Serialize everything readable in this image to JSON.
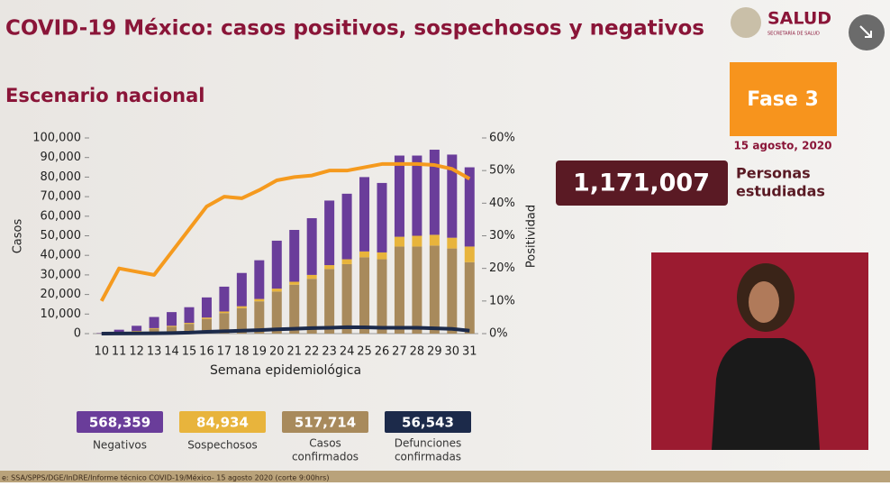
{
  "header": {
    "title": "COVID-19 México: casos positivos, sospechosos y negativos",
    "subtitle": "Escenario nacional",
    "logo": "SALUD",
    "logo_sub": "SECRETARÍA DE SALUD"
  },
  "phase": {
    "label": "Fase 3",
    "date": "15 agosto, 2020"
  },
  "studied": {
    "value": "1,171,007",
    "label_1": "Personas",
    "label_2": "estudiadas"
  },
  "summary": [
    {
      "value": "568,359",
      "label": "Negativos",
      "color": "#6a3d9a"
    },
    {
      "value": "84,934",
      "label": "Sospechosos",
      "color": "#e8b43c"
    },
    {
      "value": "517,714",
      "label_1": "Casos",
      "label_2": "confirmados",
      "color": "#a88a5c"
    },
    {
      "value": "56,543",
      "label_1": "Defunciones",
      "label_2": "confirmadas",
      "color": "#1c2a4a"
    }
  ],
  "source": "e: SSA/SPPS/DGE/InDRE/Informe técnico COVID-19/México- 15 agosto 2020 (corte 9:00hrs)",
  "chart_data": {
    "type": "bar",
    "stacked": true,
    "x_label": "Semana epidemiológica",
    "y_label": "Casos",
    "y2_label": "Positividad",
    "categories": [
      "10",
      "11",
      "12",
      "13",
      "14",
      "15",
      "16",
      "17",
      "18",
      "19",
      "20",
      "21",
      "22",
      "23",
      "24",
      "25",
      "26",
      "27",
      "28",
      "29",
      "30",
      "31"
    ],
    "ylim": [
      0,
      100000
    ],
    "yticks": [
      0,
      {
        "value": 10000,
        "label": "10,000"
      },
      {
        "value": 20000,
        "label": "20,000"
      },
      {
        "value": 30000,
        "label": "30,000"
      },
      {
        "value": 40000,
        "label": "40,000"
      },
      {
        "value": 50000,
        "label": "50,000"
      },
      {
        "value": 60000,
        "label": "60,000"
      },
      {
        "value": 70000,
        "label": "70,000"
      },
      {
        "value": 80000,
        "label": "80,000"
      },
      {
        "value": 90000,
        "label": "90,000"
      },
      {
        "value": 100000,
        "label": "100,000"
      }
    ],
    "y2lim": [
      0,
      60
    ],
    "y2ticks": [
      {
        "value": 0,
        "label": "0%"
      },
      {
        "value": 10,
        "label": "10%"
      },
      {
        "value": 20,
        "label": "20%"
      },
      {
        "value": 30,
        "label": "30%"
      },
      {
        "value": 40,
        "label": "40%"
      },
      {
        "value": 50,
        "label": "50%"
      },
      {
        "value": 60,
        "label": "60%"
      }
    ],
    "series": [
      {
        "type": "bar",
        "color": "#a88a5c",
        "values": [
          100,
          500,
          1200,
          2500,
          3500,
          5000,
          7500,
          10500,
          13000,
          16500,
          21500,
          25000,
          28000,
          33000,
          35500,
          39000,
          38000,
          44500,
          44500,
          45000,
          43500,
          36500
        ]
      },
      {
        "type": "bar",
        "color": "#e8b43c",
        "values": [
          0,
          100,
          200,
          300,
          500,
          500,
          700,
          800,
          1000,
          1200,
          1500,
          1500,
          2000,
          2000,
          2500,
          3000,
          3500,
          5000,
          5500,
          5500,
          5500,
          8000
        ]
      },
      {
        "type": "bar",
        "color": "#6a3d9a",
        "values": [
          200,
          1400,
          2600,
          5700,
          7000,
          8000,
          10300,
          12700,
          17000,
          19800,
          24500,
          26500,
          29000,
          33000,
          33500,
          38000,
          35500,
          41500,
          41000,
          43500,
          42500,
          40500
        ]
      },
      {
        "type": "line",
        "color": "#1c2a4a",
        "values": [
          0,
          50,
          100,
          200,
          300,
          500,
          900,
          1200,
          1500,
          1800,
          2200,
          2500,
          2800,
          3000,
          3300,
          3200,
          3000,
          3000,
          3000,
          2700,
          2400,
          1500
        ]
      },
      {
        "type": "line",
        "axis": "y2",
        "color": "#f59a1e",
        "values": [
          10,
          20,
          19,
          18,
          25,
          32,
          39,
          42,
          41.5,
          44,
          47,
          48,
          48.5,
          50,
          50,
          51,
          52,
          52,
          52,
          51.7,
          50.5,
          47.5
        ]
      }
    ]
  }
}
